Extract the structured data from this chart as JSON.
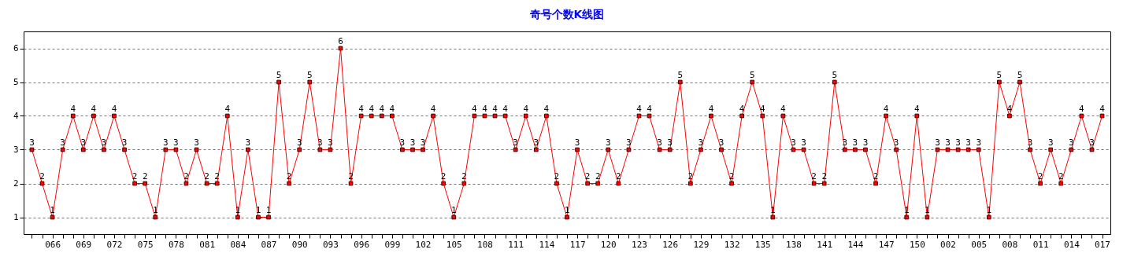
{
  "chart_data": {
    "type": "line",
    "title": "奇号个数K线图",
    "categories": [
      null,
      null,
      "066",
      null,
      null,
      "069",
      null,
      null,
      "072",
      null,
      null,
      "075",
      null,
      null,
      "078",
      null,
      null,
      "081",
      null,
      null,
      "084",
      null,
      null,
      "087",
      null,
      null,
      "090",
      null,
      null,
      "093",
      null,
      null,
      "096",
      null,
      null,
      "099",
      null,
      null,
      "102",
      null,
      null,
      "105",
      null,
      null,
      "108",
      null,
      null,
      "111",
      null,
      null,
      "114",
      null,
      null,
      "117",
      null,
      null,
      "120",
      null,
      null,
      "123",
      null,
      null,
      "126",
      null,
      null,
      "129",
      null,
      null,
      "132",
      null,
      null,
      "135",
      null,
      null,
      "138",
      null,
      null,
      "141",
      null,
      null,
      "144",
      null,
      null,
      "147",
      null,
      null,
      "150",
      null,
      null,
      "002",
      null,
      null,
      "005",
      null,
      null,
      "008",
      null,
      null,
      "011",
      null,
      null,
      "014",
      null,
      null,
      "017"
    ],
    "values": [
      3,
      2,
      1,
      3,
      4,
      3,
      4,
      3,
      4,
      3,
      2,
      2,
      1,
      3,
      3,
      2,
      3,
      2,
      2,
      4,
      1,
      3,
      1,
      1,
      5,
      2,
      3,
      5,
      3,
      3,
      6,
      2,
      4,
      4,
      4,
      4,
      3,
      3,
      3,
      4,
      2,
      1,
      2,
      4,
      4,
      4,
      4,
      3,
      4,
      3,
      4,
      2,
      1,
      3,
      2,
      2,
      3,
      2,
      3,
      4,
      4,
      3,
      3,
      5,
      2,
      3,
      4,
      3,
      2,
      4,
      5,
      4,
      1,
      4,
      3,
      3,
      2,
      2,
      5,
      3,
      3,
      3,
      2,
      4,
      3,
      1,
      4,
      1,
      3,
      3,
      3,
      3,
      3,
      1,
      5,
      4,
      5,
      3,
      2,
      3,
      2,
      3,
      4,
      3,
      4
    ],
    "color": "#ff0000",
    "ylim": [
      0.5,
      6.5
    ],
    "yticks": [
      1,
      2,
      3,
      4,
      5,
      6
    ],
    "grid": "y",
    "marker": "square",
    "line_style": "solid",
    "data_labels": true
  }
}
